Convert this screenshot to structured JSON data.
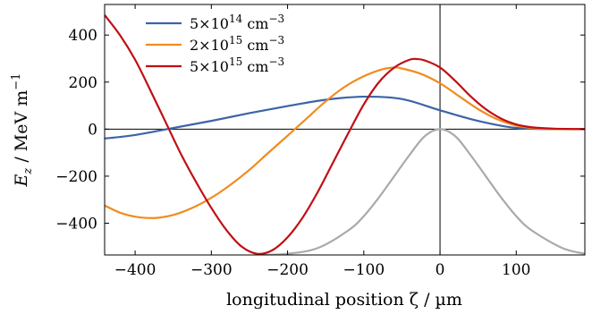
{
  "chart_data": {
    "type": "line",
    "title": "",
    "xlabel": "longitudinal position ζ / µm",
    "ylabel": "E_z / MeV m⁻¹",
    "ylabel_parts": {
      "symbol": "E",
      "sub": "z",
      "unit": " / MeV m",
      "sup": "−1"
    },
    "xlim": [
      -440,
      190
    ],
    "ylim": [
      -535,
      530
    ],
    "xticks": [
      -400,
      -300,
      -200,
      -100,
      0,
      100
    ],
    "yticks": [
      -400,
      -200,
      0,
      200,
      400
    ],
    "xtick_labels": [
      "−400",
      "−300",
      "−200",
      "−100",
      "0",
      "100"
    ],
    "ytick_labels": [
      "−400",
      "−200",
      "0",
      "200",
      "400"
    ],
    "grid": false,
    "legend_position": "top-left",
    "series": [
      {
        "name": "5×10¹⁴ cm⁻³",
        "legend": {
          "mant": "5×10",
          "exp": "14",
          "unit": " cm",
          "uexp": "−3"
        },
        "color": "#3c64a6",
        "x": [
          -440,
          -400,
          -350,
          -300,
          -250,
          -200,
          -150,
          -100,
          -50,
          0,
          50,
          100,
          150,
          190
        ],
        "y": [
          -40,
          -25,
          5,
          35,
          68,
          98,
          125,
          138,
          128,
          80,
          35,
          5,
          0,
          0
        ]
      },
      {
        "name": "2×10¹⁵ cm⁻³",
        "legend": {
          "mant": "2×10",
          "exp": "15",
          "unit": " cm",
          "uexp": "−3"
        },
        "color": "#f08c1e",
        "x": [
          -440,
          -420,
          -400,
          -375,
          -350,
          -325,
          -300,
          -275,
          -250,
          -225,
          -200,
          -175,
          -150,
          -125,
          -100,
          -75,
          -60,
          -50,
          -25,
          0,
          25,
          50,
          75,
          100,
          125,
          150,
          190
        ],
        "y": [
          -325,
          -355,
          -372,
          -378,
          -365,
          -335,
          -292,
          -237,
          -173,
          -100,
          -28,
          45,
          118,
          180,
          225,
          255,
          262,
          258,
          235,
          195,
          140,
          85,
          42,
          15,
          3,
          0,
          0
        ]
      },
      {
        "name": "5×10¹⁵ cm⁻³",
        "legend": {
          "mant": "5×10",
          "exp": "15",
          "unit": " cm",
          "uexp": "−3"
        },
        "color": "#c00f14",
        "x": [
          -440,
          -420,
          -400,
          -380,
          -360,
          -340,
          -320,
          -300,
          -280,
          -260,
          -240,
          -220,
          -200,
          -180,
          -160,
          -140,
          -120,
          -100,
          -80,
          -60,
          -40,
          -30,
          -20,
          0,
          20,
          40,
          60,
          80,
          100,
          120,
          150,
          190
        ],
        "y": [
          485,
          400,
          295,
          165,
          30,
          -105,
          -225,
          -335,
          -430,
          -500,
          -530,
          -515,
          -460,
          -375,
          -265,
          -140,
          -15,
          105,
          200,
          262,
          295,
          298,
          292,
          262,
          205,
          140,
          85,
          45,
          20,
          8,
          2,
          0
        ]
      }
    ],
    "reference_curve": {
      "color": "#aaaaaa",
      "x": [
        -240,
        -200,
        -160,
        -120,
        -100,
        -80,
        -60,
        -40,
        -20,
        0,
        20,
        40,
        60,
        80,
        100,
        120,
        160,
        190
      ],
      "y": [
        -535,
        -530,
        -505,
        -430,
        -370,
        -290,
        -200,
        -110,
        -30,
        0,
        -30,
        -110,
        -200,
        -290,
        -370,
        -430,
        -505,
        -530
      ]
    }
  }
}
